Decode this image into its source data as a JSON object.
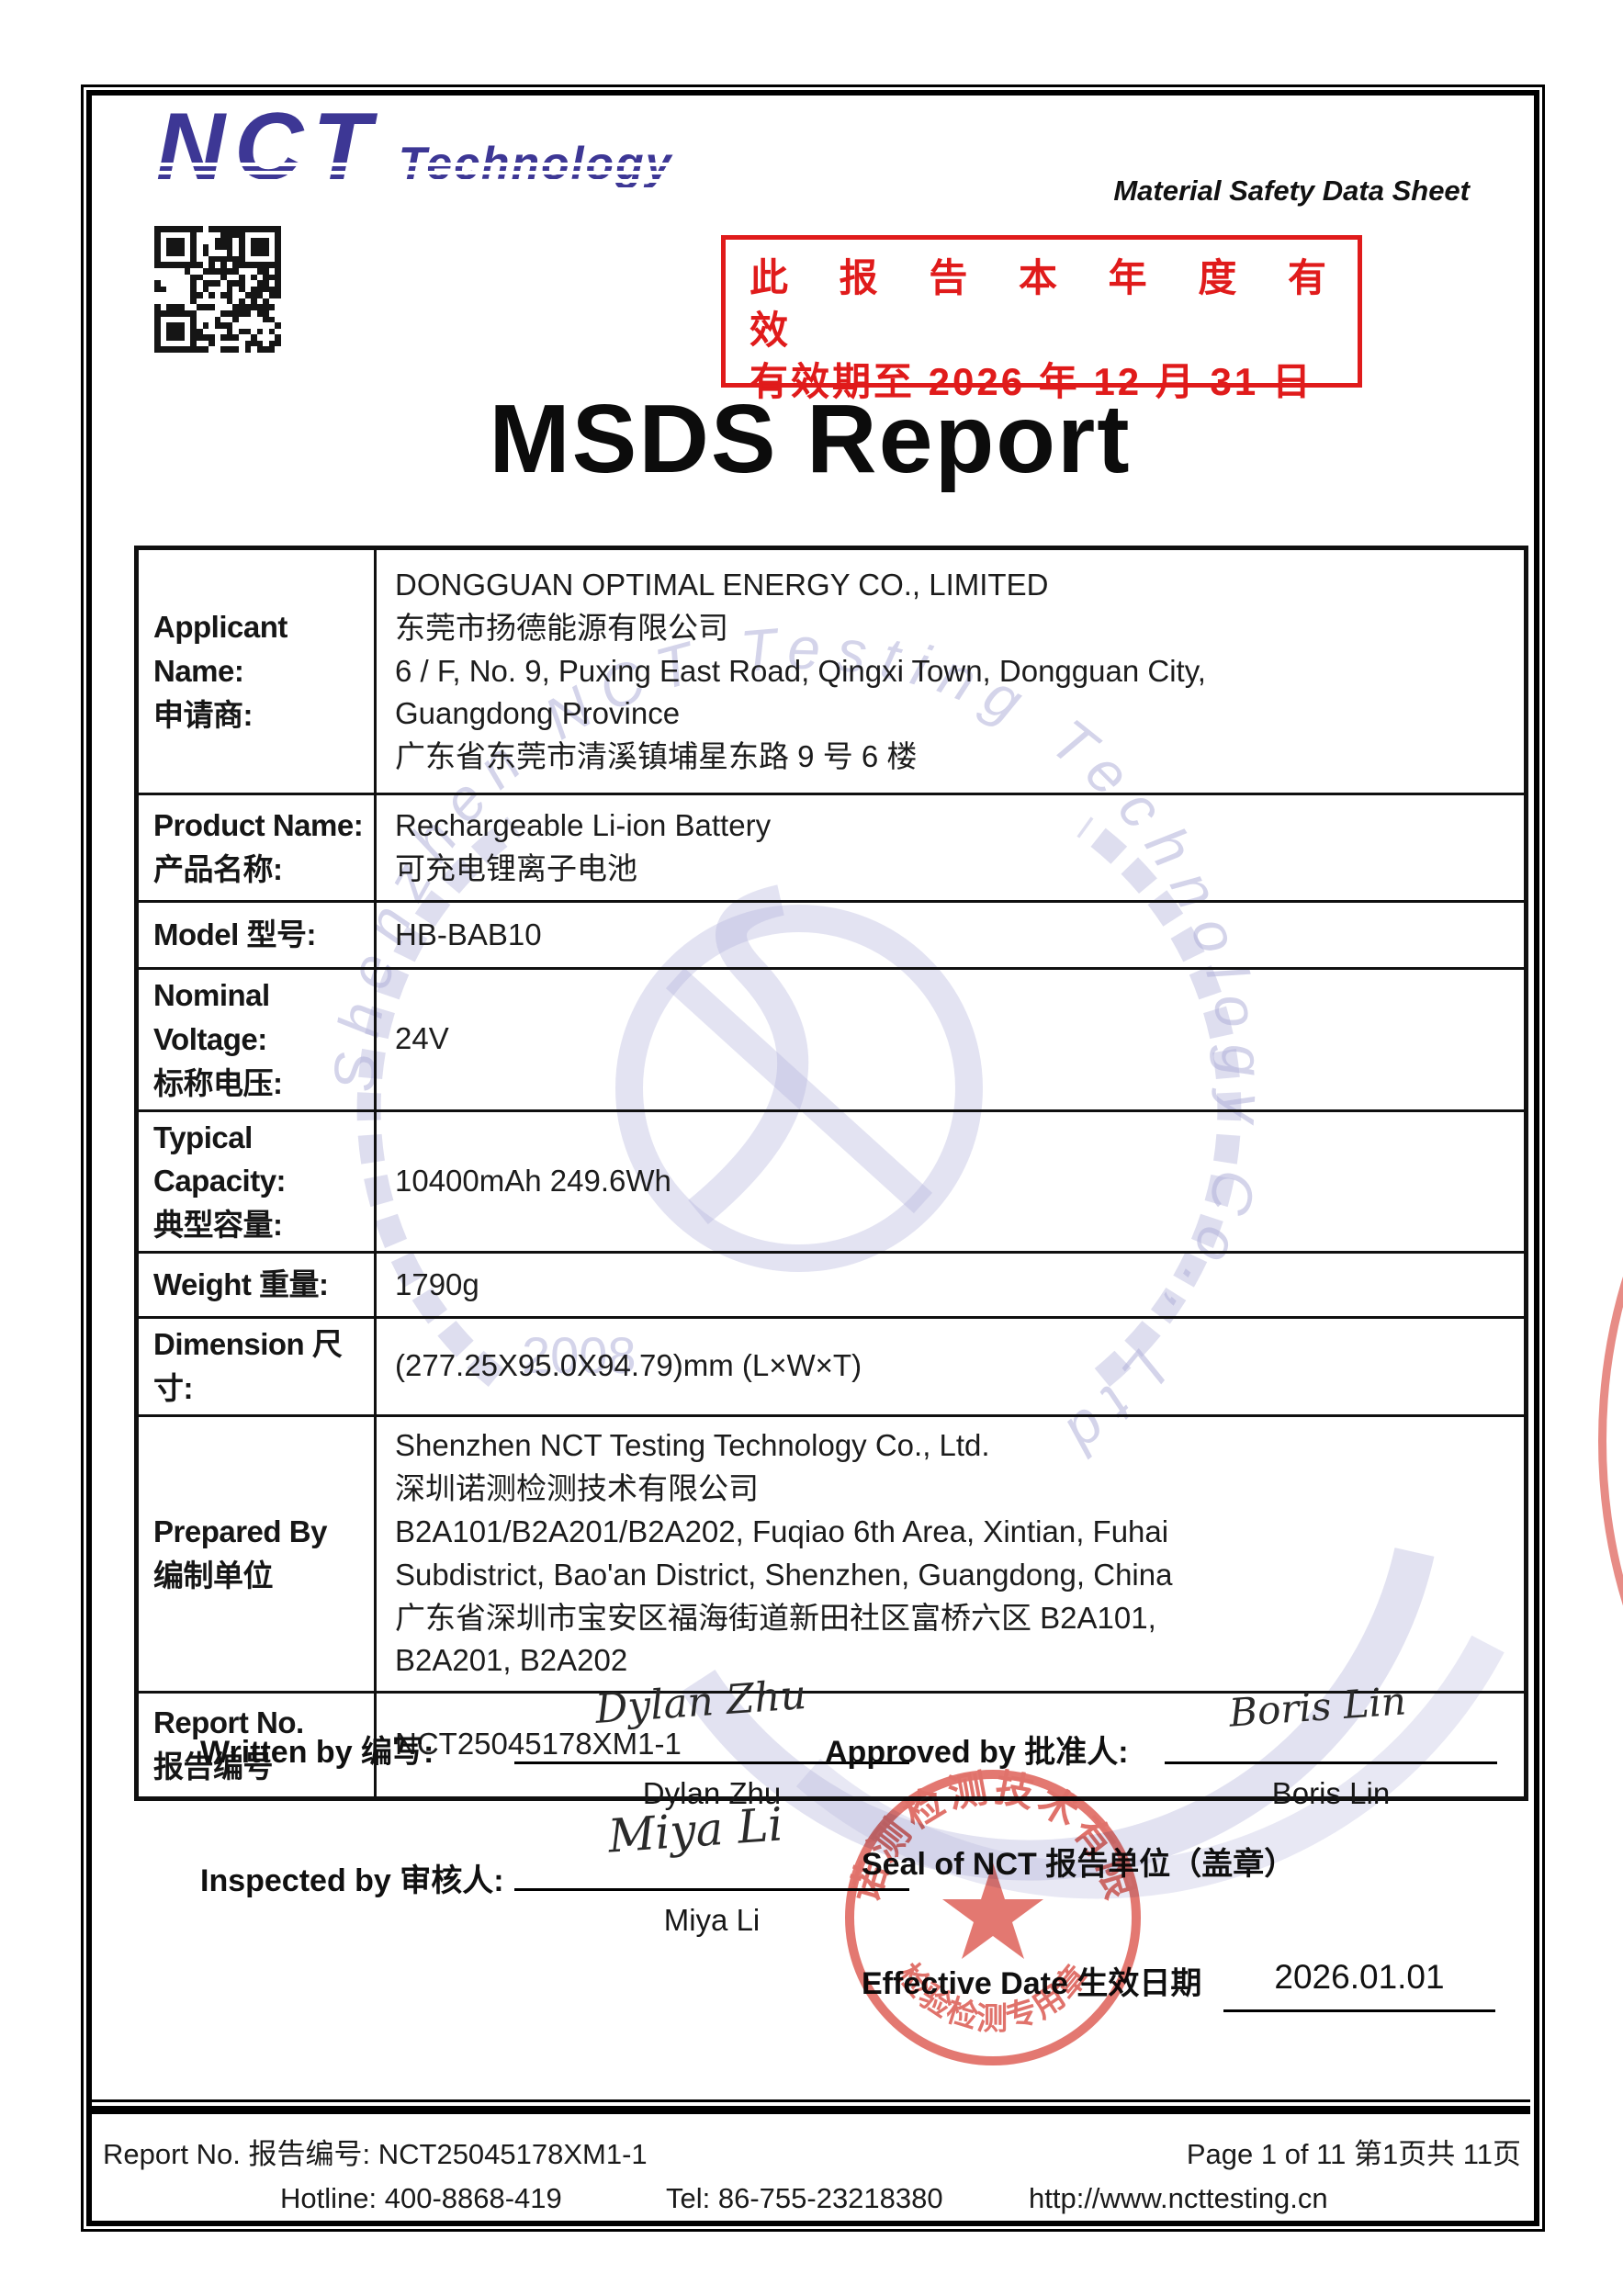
{
  "page": {
    "doc_label": "Material Safety Data Sheet",
    "title": "MSDS Report"
  },
  "logo": {
    "main": "NCT",
    "sub": "Technology"
  },
  "validity": {
    "line1": "此 报 告 本 年 度 有 效",
    "line2": "有效期至 2026 年 12 月 31 日"
  },
  "table": {
    "rows": [
      {
        "label_en": "Applicant Name:",
        "label_cn": "申请商:",
        "lines": [
          "DONGGUAN OPTIMAL ENERGY CO., LIMITED",
          "东莞市扬德能源有限公司",
          "6 / F, No. 9, Puxing East Road, Qingxi Town, Dongguan City,",
          "Guangdong Province",
          "广东省东莞市清溪镇埔星东路 9 号 6 楼"
        ]
      },
      {
        "label_en": "Product Name:",
        "label_cn": "产品名称:",
        "lines": [
          "Rechargeable Li-ion Battery",
          "可充电锂离子电池"
        ]
      },
      {
        "label_en": "Model 型号:",
        "label_cn": "",
        "lines": [
          "HB-BAB10"
        ]
      },
      {
        "label_en": "Nominal Voltage:",
        "label_cn": "标称电压:",
        "lines": [
          "24V"
        ]
      },
      {
        "label_en": "Typical Capacity:",
        "label_cn": "典型容量:",
        "lines": [
          "10400mAh 249.6Wh"
        ]
      },
      {
        "label_en": "Weight 重量:",
        "label_cn": "",
        "lines": [
          "1790g"
        ]
      },
      {
        "label_en": "Dimension 尺寸:",
        "label_cn": "",
        "lines": [
          "(277.25X95.0X94.79)mm (L×W×T)"
        ]
      },
      {
        "label_en": "Prepared By",
        "label_cn": "编制单位",
        "lines": [
          "Shenzhen NCT Testing Technology Co., Ltd.",
          "深圳诺测检测技术有限公司",
          "B2A101/B2A201/B2A202, Fuqiao 6th Area, Xintian, Fuhai",
          "Subdistrict, Bao'an District, Shenzhen, Guangdong, China",
          "广东省深圳市宝安区福海街道新田社区富桥六区 B2A101,",
          "B2A201, B2A202"
        ]
      },
      {
        "label_en": "Report No.",
        "label_cn": "报告编号",
        "lines": [
          "NCT25045178XM1-1"
        ]
      }
    ]
  },
  "signatures": {
    "written_label": "Written by 编写:",
    "written_sig": "Dylan Zhu",
    "written_name": "Dylan Zhu",
    "approved_label": "Approved by 批准人:",
    "approved_sig": "Boris Lin",
    "approved_name": "Boris Lin",
    "inspected_label": "Inspected by 审核人:",
    "inspected_sig": "Miya Li",
    "inspected_name": "Miya Li",
    "seal_label": "Seal of NCT 报告单位（盖章）",
    "effective_label": "Effective Date 生效日期",
    "effective_value": "2026.01.01"
  },
  "seal": {
    "ring_text": "深圳诺测检测技术有限公司",
    "bottom_text": "检验检测专用章"
  },
  "watermark": {
    "ring_text": "Shenzhen NCT Testing Technology Co., Ltd",
    "year": "2008"
  },
  "footer": {
    "report_no": "Report No. 报告编号: NCT25045178XM1-1",
    "page_info": "Page 1 of 11 第1页共 11页",
    "hotline": "Hotline: 400-8868-419",
    "tel": "Tel: 86-755-23218380",
    "website": "http://www.ncttesting.cn"
  },
  "colors": {
    "brand_blue": "#3d3795",
    "alert_red": "#e01b1b",
    "seal_red": "#dd5b52",
    "watermark": "#b6b6dc"
  }
}
